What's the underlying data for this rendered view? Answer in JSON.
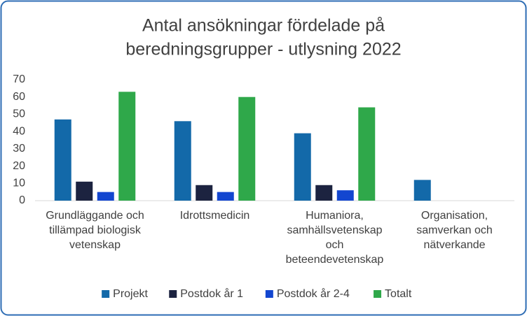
{
  "chart_data": {
    "type": "bar",
    "title": [
      "Antal ansökningar fördelade på",
      "beredningsgrupper - utlysning 2022"
    ],
    "categories": [
      "Grundläggande och tillämpad biologisk vetenskap",
      "Idrottsmedicin",
      "Humaniora, samhällsvetenskap och beteendevetenskap",
      "Organisation, samverkan och nätverkande"
    ],
    "series": [
      {
        "name": "Projekt",
        "color": "#1369a9",
        "values": [
          47,
          46,
          39,
          12
        ]
      },
      {
        "name": "Postdok år 1",
        "color": "#1c2340",
        "values": [
          11,
          9,
          9,
          null
        ]
      },
      {
        "name": "Postdok år 2-4",
        "color": "#1346d0",
        "values": [
          5,
          5,
          6,
          null
        ]
      },
      {
        "name": "Totalt",
        "color": "#2fa84a",
        "values": [
          63,
          60,
          54,
          null
        ]
      }
    ],
    "ylim": [
      0,
      70
    ],
    "yticks": [
      0,
      10,
      20,
      30,
      40,
      50,
      60,
      70
    ],
    "grid": false,
    "legend": "bottom"
  }
}
